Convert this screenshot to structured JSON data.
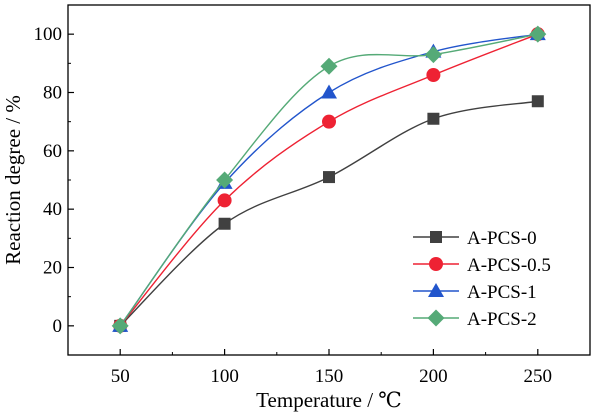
{
  "chart_data": {
    "type": "line",
    "xlabel": "Temperature / ℃",
    "ylabel": "Reaction degree / %",
    "x": [
      50,
      100,
      150,
      200,
      250
    ],
    "xlim": [
      25,
      275
    ],
    "ylim": [
      -10,
      110
    ],
    "xticks": [
      50,
      100,
      150,
      200,
      250
    ],
    "yticks": [
      0,
      20,
      40,
      60,
      80,
      100
    ],
    "grid": false,
    "legend": "lower-right",
    "series": [
      {
        "name": "A-PCS-0",
        "values": [
          0,
          35,
          51,
          71,
          77
        ],
        "color": "#404040",
        "marker": "square"
      },
      {
        "name": "A-PCS-0.5",
        "values": [
          0,
          43,
          70,
          86,
          100
        ],
        "color": "#ee2233",
        "marker": "circle"
      },
      {
        "name": "A-PCS-1",
        "values": [
          0,
          49,
          80,
          94,
          100
        ],
        "color": "#2255cc",
        "marker": "triangle"
      },
      {
        "name": "A-PCS-2",
        "values": [
          0,
          50,
          89,
          93,
          100
        ],
        "color": "#55aa77",
        "marker": "diamond"
      }
    ]
  }
}
